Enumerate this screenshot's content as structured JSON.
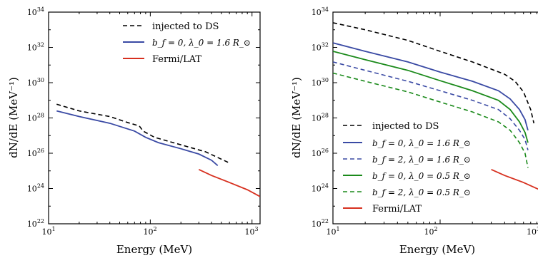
{
  "chart_data": [
    {
      "type": "line",
      "xlabel": "Energy (MeV)",
      "ylabel": "dN/dE (MeV⁻¹)",
      "xscale": "log",
      "yscale": "log",
      "xlim": [
        10,
        1200
      ],
      "ylim": [
        1e+22,
        1e+34
      ],
      "xticks": [
        {
          "base": "10",
          "exp": "1"
        },
        {
          "base": "10",
          "exp": "2"
        },
        {
          "base": "10",
          "exp": "3"
        }
      ],
      "yticks": [
        {
          "base": "10",
          "exp": "22"
        },
        {
          "base": "10",
          "exp": "24"
        },
        {
          "base": "10",
          "exp": "26"
        },
        {
          "base": "10",
          "exp": "28"
        },
        {
          "base": "10",
          "exp": "30"
        },
        {
          "base": "10",
          "exp": "32"
        },
        {
          "base": "10",
          "exp": "34"
        }
      ],
      "legend_position": "top-right",
      "series": [
        {
          "name": "injected to DS",
          "color": "#000000",
          "dash": "dashed",
          "points": [
            [
              12,
              6e+28
            ],
            [
              20,
              2.5e+28
            ],
            [
              40,
              1.2e+28
            ],
            [
              60,
              5.5e+27
            ],
            [
              78,
              3.5e+27
            ],
            [
              85,
              1.8e+27
            ],
            [
              110,
              8e+26
            ],
            [
              200,
              3e+26
            ],
            [
              350,
              1.2e+26
            ],
            [
              600,
              2.8e+25
            ]
          ]
        },
        {
          "name": "b_f = 0, λ_0 = 1.6 R_⊙",
          "color": "#3a4aa4",
          "dash": "solid",
          "points": [
            [
              12,
              2.5e+28
            ],
            [
              20,
              1.2e+28
            ],
            [
              40,
              5e+27
            ],
            [
              70,
              1.8e+27
            ],
            [
              90,
              8e+26
            ],
            [
              120,
              4e+26
            ],
            [
              200,
              1.8e+26
            ],
            [
              300,
              9e+25
            ],
            [
              400,
              4e+25
            ],
            [
              460,
              2e+25
            ]
          ]
        },
        {
          "name": "Fermi/LAT",
          "color": "#d7301f",
          "dash": "solid",
          "points": [
            [
              300,
              1.2e+25
            ],
            [
              400,
              5.5e+24
            ],
            [
              600,
              2.2e+24
            ],
            [
              900,
              8.5e+23
            ],
            [
              1200,
              3.5e+23
            ]
          ]
        }
      ]
    },
    {
      "type": "line",
      "xlabel": "Energy (MeV)",
      "ylabel": "dN/dE (MeV⁻¹)",
      "xscale": "log",
      "yscale": "log",
      "xlim": [
        10,
        1000
      ],
      "ylim": [
        1e+22,
        1e+34
      ],
      "xticks": [
        {
          "base": "10",
          "exp": "1"
        },
        {
          "base": "10",
          "exp": "2"
        },
        {
          "base": "10",
          "exp": "3"
        }
      ],
      "yticks": [
        {
          "base": "10",
          "exp": "22"
        },
        {
          "base": "10",
          "exp": "24"
        },
        {
          "base": "10",
          "exp": "26"
        },
        {
          "base": "10",
          "exp": "28"
        },
        {
          "base": "10",
          "exp": "30"
        },
        {
          "base": "10",
          "exp": "32"
        },
        {
          "base": "10",
          "exp": "34"
        }
      ],
      "legend_position": "bottom-left",
      "series": [
        {
          "name": "injected to DS",
          "color": "#000000",
          "dash": "dashed",
          "points": [
            [
              10,
              2.5e+33
            ],
            [
              20,
              1e+33
            ],
            [
              50,
              2.5e+32
            ],
            [
              100,
              6e+31
            ],
            [
              200,
              1.5e+31
            ],
            [
              400,
              3e+30
            ],
            [
              500,
              1.2e+30
            ],
            [
              600,
              3e+29
            ],
            [
              700,
              3e+28
            ],
            [
              750,
              5e+27
            ]
          ]
        },
        {
          "name": "b_f = 0, λ_0 = 1.6 R_⊙",
          "color": "#3a4aa4",
          "dash": "solid",
          "points": [
            [
              10,
              1.8e+32
            ],
            [
              20,
              6e+31
            ],
            [
              50,
              1.5e+31
            ],
            [
              100,
              4e+30
            ],
            [
              200,
              1.2e+30
            ],
            [
              350,
              3.5e+29
            ],
            [
              450,
              1.2e+29
            ],
            [
              550,
              3e+28
            ],
            [
              620,
              8e+27
            ],
            [
              660,
              2e+27
            ]
          ]
        },
        {
          "name": "b_f = 2, λ_0 = 1.6 R_⊙",
          "color": "#3a4aa4",
          "dash": "dashed",
          "points": [
            [
              10,
              1.5e+31
            ],
            [
              20,
              5e+30
            ],
            [
              50,
              1.2e+30
            ],
            [
              100,
              3.5e+29
            ],
            [
              200,
              1e+29
            ],
            [
              350,
              3e+28
            ],
            [
              450,
              9e+27
            ],
            [
              550,
              2e+27
            ],
            [
              620,
              6e+26
            ],
            [
              660,
              1.5e+26
            ]
          ]
        },
        {
          "name": "b_f = 0, λ_0 = 0.5 R_⊙",
          "color": "#1b8a1b",
          "dash": "solid",
          "points": [
            [
              10,
              6e+31
            ],
            [
              20,
              2e+31
            ],
            [
              50,
              5e+30
            ],
            [
              100,
              1.3e+30
            ],
            [
              200,
              3.5e+29
            ],
            [
              350,
              1e+29
            ],
            [
              450,
              3e+28
            ],
            [
              550,
              6e+27
            ],
            [
              620,
              1.5e+27
            ],
            [
              660,
              4e+26
            ]
          ]
        },
        {
          "name": "b_f = 2, λ_0 = 0.5 R_⊙",
          "color": "#1b8a1b",
          "dash": "dashed",
          "points": [
            [
              10,
              3.5e+30
            ],
            [
              20,
              1.2e+30
            ],
            [
              50,
              3e+29
            ],
            [
              100,
              8e+28
            ],
            [
              200,
              2.2e+28
            ],
            [
              350,
              6e+27
            ],
            [
              450,
              2e+27
            ],
            [
              550,
              4e+26
            ],
            [
              620,
              1e+26
            ],
            [
              660,
              1.5e+25
            ]
          ]
        },
        {
          "name": "Fermi/LAT",
          "color": "#d7301f",
          "dash": "solid",
          "points": [
            [
              300,
              1.2e+25
            ],
            [
              400,
              5.5e+24
            ],
            [
              600,
              2.2e+24
            ],
            [
              800,
              1e+24
            ],
            [
              1000,
              5e+23
            ]
          ]
        }
      ]
    }
  ]
}
